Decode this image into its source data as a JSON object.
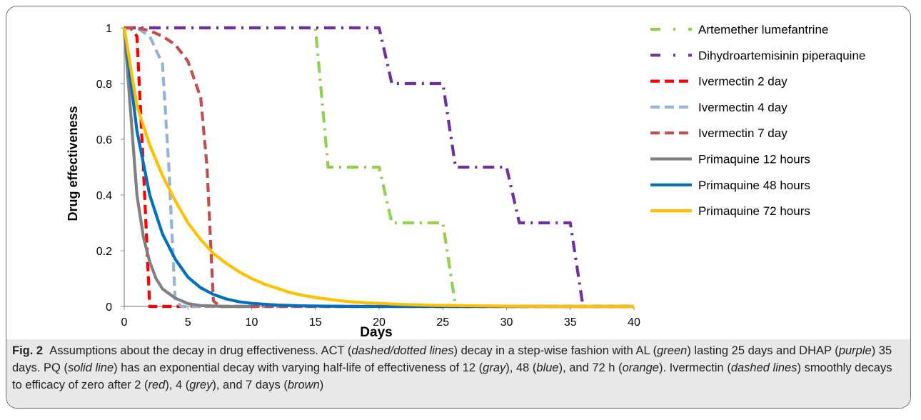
{
  "chart_data": {
    "type": "line",
    "xlabel": "Days",
    "ylabel": "Drug effectiveness",
    "xlim": [
      0,
      40
    ],
    "ylim": [
      0,
      1
    ],
    "x_ticks": [
      "0",
      "5",
      "10",
      "15",
      "20",
      "25",
      "30",
      "35",
      "40"
    ],
    "y_ticks": [
      "0",
      "0.2",
      "0.4",
      "0.6",
      "0.8",
      "1"
    ],
    "grid": false,
    "legend_position": "right",
    "series": [
      {
        "name": "Artemether lumefantrine",
        "color": "#92d050",
        "dash": "dashdot",
        "x": [
          0,
          15,
          15,
          16,
          20,
          21,
          25,
          26,
          26,
          40
        ],
        "y": [
          1,
          1,
          1,
          0.5,
          0.5,
          0.3,
          0.3,
          0,
          0,
          0
        ]
      },
      {
        "name": "Dihydroartemisinin piperaquine",
        "color": "#7030a0",
        "dash": "dashdot",
        "x": [
          0,
          20,
          21,
          25,
          26,
          30,
          31,
          35,
          36,
          40
        ],
        "y": [
          1,
          1,
          0.8,
          0.8,
          0.5,
          0.5,
          0.3,
          0.3,
          0,
          0
        ]
      },
      {
        "name": "Ivermectin 2 day",
        "color": "#ff0000",
        "dash": "dashed",
        "x": [
          0,
          0.5,
          1,
          1.5,
          2,
          2.5,
          3,
          4,
          40
        ],
        "y": [
          1,
          1,
          0.97,
          0.5,
          0,
          0,
          0,
          0,
          0
        ]
      },
      {
        "name": "Ivermectin 4 day",
        "color": "#95b3d7",
        "dash": "dashed",
        "x": [
          0,
          1,
          2,
          3,
          3.5,
          4,
          4.5,
          5,
          40
        ],
        "y": [
          1,
          1,
          0.97,
          0.87,
          0.5,
          0.02,
          0,
          0,
          0
        ]
      },
      {
        "name": "Ivermectin 7 day",
        "color": "#c0504d",
        "dash": "dashed",
        "x": [
          0,
          1,
          2,
          3,
          4,
          5,
          6,
          6.5,
          7,
          7.5,
          40
        ],
        "y": [
          1,
          1,
          0.99,
          0.97,
          0.94,
          0.88,
          0.75,
          0.5,
          0.02,
          0,
          0
        ]
      },
      {
        "name": "Primaquine 12 hours",
        "color": "#808080",
        "dash": "solid",
        "x": [
          0,
          0.5,
          1,
          1.5,
          2,
          2.5,
          3,
          4,
          5,
          6,
          8,
          10
        ],
        "y": [
          1,
          0.7,
          0.4,
          0.25,
          0.16,
          0.1,
          0.063,
          0.03,
          0.01,
          0.003,
          0,
          0
        ]
      },
      {
        "name": "Primaquine 48 hours",
        "color": "#0070c0",
        "dash": "solid",
        "x": [
          0,
          1,
          2,
          3,
          4,
          5,
          6,
          7,
          8,
          9,
          10,
          12,
          14,
          16,
          18,
          20,
          25,
          40
        ],
        "y": [
          1,
          0.63,
          0.4,
          0.26,
          0.17,
          0.105,
          0.067,
          0.043,
          0.027,
          0.017,
          0.011,
          0.005,
          0.002,
          0.001,
          0,
          0,
          0,
          0
        ]
      },
      {
        "name": "Primaquine 72 hours",
        "color": "#ffc000",
        "dash": "solid",
        "x": [
          0,
          1,
          2,
          3,
          4,
          5,
          6,
          7,
          8,
          9,
          10,
          11,
          12,
          13,
          14,
          15,
          16,
          17,
          18,
          19,
          20,
          22,
          24,
          26,
          28,
          30,
          35,
          40
        ],
        "y": [
          1,
          0.72,
          0.58,
          0.47,
          0.38,
          0.3,
          0.24,
          0.19,
          0.155,
          0.125,
          0.1,
          0.08,
          0.065,
          0.05,
          0.04,
          0.032,
          0.026,
          0.02,
          0.016,
          0.013,
          0.011,
          0.007,
          0.004,
          0.003,
          0.002,
          0.001,
          0,
          0
        ]
      }
    ]
  },
  "caption": {
    "label": "Fig. 2",
    "segments": [
      {
        "text": "Assumptions about the decay in drug effectiveness. ACT (",
        "italic": false
      },
      {
        "text": "dashed/dotted lines",
        "italic": true
      },
      {
        "text": ") decay in a step-wise fashion with AL (",
        "italic": false
      },
      {
        "text": "green",
        "italic": true
      },
      {
        "text": ") lasting 25 days and DHAP (",
        "italic": false
      },
      {
        "text": "purple",
        "italic": true
      },
      {
        "text": ") 35 days. PQ (",
        "italic": false
      },
      {
        "text": "solid line",
        "italic": true
      },
      {
        "text": ") has an exponential decay with varying half-life of effectiveness of 12 (",
        "italic": false
      },
      {
        "text": "gray",
        "italic": true
      },
      {
        "text": "), 48 (",
        "italic": false
      },
      {
        "text": "blue",
        "italic": true
      },
      {
        "text": "), and 72 h (",
        "italic": false
      },
      {
        "text": "orange",
        "italic": true
      },
      {
        "text": "). Ivermectin (",
        "italic": false
      },
      {
        "text": "dashed lines",
        "italic": true
      },
      {
        "text": ") smoothly decays to efficacy of zero after 2 (",
        "italic": false
      },
      {
        "text": "red",
        "italic": true
      },
      {
        "text": "), 4 (",
        "italic": false
      },
      {
        "text": "grey",
        "italic": true
      },
      {
        "text": "), and 7 days (",
        "italic": false
      },
      {
        "text": "brown",
        "italic": true
      },
      {
        "text": ")",
        "italic": false
      }
    ]
  }
}
